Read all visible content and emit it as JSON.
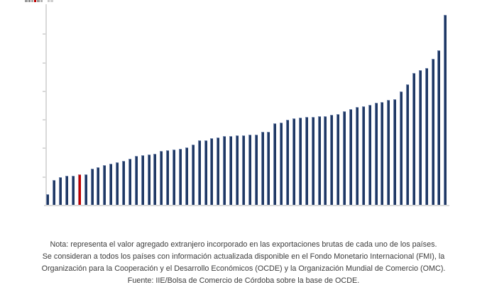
{
  "chart_data": {
    "type": "bar",
    "title": "",
    "xlabel": "",
    "ylabel": "",
    "categories_visible": false,
    "y_axis": {
      "ylim": [
        0,
        70
      ],
      "tick_interval": 10,
      "tick_labels_visible": false,
      "grid": false
    },
    "values": [
      3.7,
      8.7,
      9.7,
      10.2,
      10.2,
      10.7,
      10.7,
      12.6,
      13.2,
      13.8,
      14.5,
      14.9,
      15.5,
      16.1,
      17.1,
      17.4,
      17.5,
      17.9,
      18.9,
      19.2,
      19.4,
      19.7,
      20.2,
      21.2,
      22.5,
      22.7,
      23.3,
      23.7,
      24.0,
      24.1,
      24.3,
      24.4,
      24.5,
      24.6,
      25.6,
      25.6,
      28.5,
      28.8,
      29.8,
      30.3,
      30.6,
      30.8,
      30.8,
      31.0,
      31.0,
      31.4,
      31.8,
      32.7,
      33.6,
      34.3,
      34.5,
      35.1,
      35.8,
      36.0,
      36.8,
      37.0,
      39.7,
      42.2,
      46.1,
      47.1,
      48.0,
      51.0,
      54.2,
      66.4
    ],
    "highlight_index": 5,
    "colors": {
      "bar": "#1f3864",
      "highlight": "#c00000",
      "axis": "#d9d9d9",
      "bar_edge_highlight": "rgba(174,189,220,0.6)"
    },
    "legend": {
      "visible": false,
      "note": "cropped fragment at top edge of image"
    }
  },
  "decor": {
    "cropped_legend_segments": [
      {
        "w": 4,
        "gap": 1,
        "color": "#9a9a9a"
      },
      {
        "w": 3,
        "gap": 1,
        "color": "#8c8c8c"
      },
      {
        "w": 3,
        "gap": 1,
        "color": "#a8a8a8"
      },
      {
        "w": 3,
        "gap": 1,
        "color": "#c00000"
      },
      {
        "w": 4,
        "gap": 1,
        "color": "#9a9a9a"
      },
      {
        "w": 3,
        "gap": 7,
        "color": "#b0b0b0"
      },
      {
        "w": 3,
        "gap": 1,
        "color": "#c9c9c9"
      },
      {
        "w": 4,
        "gap": 0,
        "color": "#cfcfcf"
      }
    ]
  },
  "note": {
    "lines": [
      "Nota: representa el valor agregado extranjero incorporado en las exportaciones brutas de cada uno de los países.",
      "Se consideran a todos los países con información actualizada disponible en el Fondo Monetario Internacional (FMI), la",
      "Organización para la Cooperación y el Desarrollo Económicos (OCDE) y la Organización Mundial de Comercio (OMC).",
      "Fuente: IIE/Bolsa de Comercio de Córdoba sobre la base de OCDE."
    ]
  }
}
